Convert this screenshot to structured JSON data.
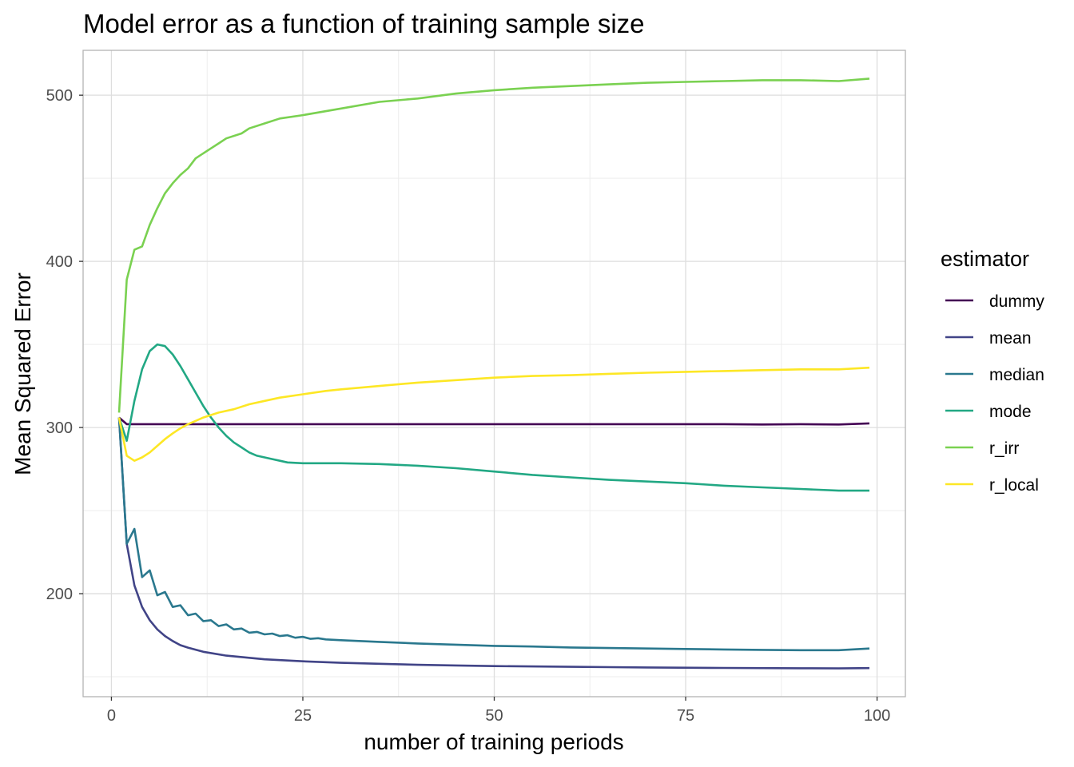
{
  "chart_data": {
    "type": "line",
    "title": "Model error as a function of training sample size",
    "xlabel": "number of training periods",
    "ylabel": "Mean Squared Error",
    "xlim": [
      -3.7,
      103.7
    ],
    "ylim": [
      138,
      527
    ],
    "x_ticks": [
      0,
      25,
      50,
      75,
      100
    ],
    "x_tick_labels": [
      "0",
      "25",
      "50",
      "75",
      "100"
    ],
    "y_ticks": [
      200,
      300,
      400,
      500
    ],
    "y_tick_labels": [
      "200",
      "300",
      "400",
      "500"
    ],
    "x_minor": [
      12.5,
      37.5,
      62.5,
      87.5
    ],
    "y_minor": [
      150,
      250,
      350,
      450
    ],
    "grid": true,
    "legend_title": "estimator",
    "legend_position": "right",
    "series": [
      {
        "name": "dummy",
        "color": "#440154",
        "points": [
          [
            1,
            306
          ],
          [
            2,
            302
          ],
          [
            5,
            302
          ],
          [
            10,
            302
          ],
          [
            20,
            302
          ],
          [
            30,
            302
          ],
          [
            40,
            302
          ],
          [
            50,
            302
          ],
          [
            60,
            302
          ],
          [
            70,
            302
          ],
          [
            80,
            302
          ],
          [
            85,
            301.8
          ],
          [
            90,
            302
          ],
          [
            95,
            301.8
          ],
          [
            99,
            302.5
          ]
        ]
      },
      {
        "name": "mean",
        "color": "#414487",
        "points": [
          [
            1,
            306
          ],
          [
            2,
            230
          ],
          [
            3,
            205
          ],
          [
            4,
            192
          ],
          [
            5,
            184
          ],
          [
            6,
            178.5
          ],
          [
            7,
            174.5
          ],
          [
            8,
            171.5
          ],
          [
            9,
            169
          ],
          [
            10,
            167.5
          ],
          [
            12,
            165
          ],
          [
            15,
            162.7
          ],
          [
            20,
            160.5
          ],
          [
            25,
            159.3
          ],
          [
            30,
            158.4
          ],
          [
            35,
            157.8
          ],
          [
            40,
            157.2
          ],
          [
            45,
            156.8
          ],
          [
            50,
            156.4
          ],
          [
            60,
            156
          ],
          [
            70,
            155.6
          ],
          [
            80,
            155.3
          ],
          [
            90,
            155.1
          ],
          [
            95,
            155
          ],
          [
            99,
            155.2
          ]
        ]
      },
      {
        "name": "median",
        "color": "#2A788E",
        "points": [
          [
            1,
            306
          ],
          [
            2,
            230
          ],
          [
            3,
            239
          ],
          [
            4,
            210
          ],
          [
            5,
            214
          ],
          [
            6,
            199
          ],
          [
            7,
            201
          ],
          [
            8,
            192
          ],
          [
            9,
            193
          ],
          [
            10,
            187
          ],
          [
            11,
            188
          ],
          [
            12,
            183.5
          ],
          [
            13,
            184
          ],
          [
            14,
            180.5
          ],
          [
            15,
            181.5
          ],
          [
            16,
            178.5
          ],
          [
            17,
            179
          ],
          [
            18,
            176.5
          ],
          [
            19,
            177
          ],
          [
            20,
            175.5
          ],
          [
            21,
            176
          ],
          [
            22,
            174.5
          ],
          [
            23,
            175
          ],
          [
            24,
            173.5
          ],
          [
            25,
            174
          ],
          [
            26,
            172.8
          ],
          [
            27,
            173.2
          ],
          [
            28,
            172.5
          ],
          [
            30,
            172
          ],
          [
            35,
            171
          ],
          [
            40,
            170
          ],
          [
            45,
            169.3
          ],
          [
            50,
            168.6
          ],
          [
            55,
            168.2
          ],
          [
            60,
            167.6
          ],
          [
            65,
            167.3
          ],
          [
            70,
            167
          ],
          [
            75,
            166.7
          ],
          [
            80,
            166.4
          ],
          [
            85,
            166.2
          ],
          [
            90,
            166
          ],
          [
            95,
            166
          ],
          [
            99,
            167
          ]
        ]
      },
      {
        "name": "mode",
        "color": "#22A884",
        "points": [
          [
            1,
            306
          ],
          [
            2,
            292
          ],
          [
            3,
            316
          ],
          [
            4,
            335
          ],
          [
            5,
            346
          ],
          [
            6,
            350
          ],
          [
            7,
            349
          ],
          [
            8,
            344
          ],
          [
            9,
            337
          ],
          [
            10,
            329
          ],
          [
            11,
            321
          ],
          [
            12,
            313
          ],
          [
            13,
            306
          ],
          [
            14,
            300
          ],
          [
            15,
            295
          ],
          [
            16,
            291
          ],
          [
            17,
            288
          ],
          [
            18,
            285
          ],
          [
            19,
            283
          ],
          [
            20,
            282
          ],
          [
            21,
            281
          ],
          [
            22,
            280
          ],
          [
            23,
            279
          ],
          [
            25,
            278.5
          ],
          [
            30,
            278.5
          ],
          [
            35,
            278
          ],
          [
            40,
            277
          ],
          [
            45,
            275.5
          ],
          [
            50,
            273.5
          ],
          [
            55,
            271.5
          ],
          [
            60,
            270
          ],
          [
            65,
            268.5
          ],
          [
            70,
            267.5
          ],
          [
            75,
            266.5
          ],
          [
            80,
            265
          ],
          [
            85,
            264
          ],
          [
            90,
            263
          ],
          [
            95,
            262
          ],
          [
            99,
            262
          ]
        ]
      },
      {
        "name": "r_irr",
        "color": "#7AD151",
        "points": [
          [
            1,
            309
          ],
          [
            2,
            389
          ],
          [
            3,
            407
          ],
          [
            4,
            409
          ],
          [
            5,
            422
          ],
          [
            6,
            432
          ],
          [
            7,
            441
          ],
          [
            8,
            447
          ],
          [
            9,
            452
          ],
          [
            10,
            456
          ],
          [
            11,
            462
          ],
          [
            12,
            465
          ],
          [
            13,
            468
          ],
          [
            14,
            471
          ],
          [
            15,
            474
          ],
          [
            17,
            477
          ],
          [
            18,
            480
          ],
          [
            20,
            483
          ],
          [
            22,
            486
          ],
          [
            25,
            488
          ],
          [
            30,
            492
          ],
          [
            35,
            496
          ],
          [
            40,
            498
          ],
          [
            45,
            501
          ],
          [
            50,
            503
          ],
          [
            55,
            504.5
          ],
          [
            60,
            505.5
          ],
          [
            65,
            506.5
          ],
          [
            70,
            507.5
          ],
          [
            75,
            508
          ],
          [
            80,
            508.5
          ],
          [
            85,
            509
          ],
          [
            90,
            509
          ],
          [
            95,
            508.5
          ],
          [
            99,
            510
          ]
        ]
      },
      {
        "name": "r_local",
        "color": "#FDE725",
        "points": [
          [
            1,
            306
          ],
          [
            2,
            283
          ],
          [
            3,
            280
          ],
          [
            4,
            282
          ],
          [
            5,
            285
          ],
          [
            6,
            289
          ],
          [
            7,
            293
          ],
          [
            8,
            296.5
          ],
          [
            9,
            299.5
          ],
          [
            10,
            302
          ],
          [
            11,
            304
          ],
          [
            12,
            306
          ],
          [
            14,
            309
          ],
          [
            16,
            311
          ],
          [
            18,
            314
          ],
          [
            20,
            316
          ],
          [
            22,
            318
          ],
          [
            25,
            320
          ],
          [
            28,
            322
          ],
          [
            30,
            323
          ],
          [
            35,
            325
          ],
          [
            40,
            327
          ],
          [
            45,
            328.5
          ],
          [
            50,
            330
          ],
          [
            55,
            331
          ],
          [
            60,
            331.5
          ],
          [
            65,
            332.3
          ],
          [
            70,
            333
          ],
          [
            75,
            333.5
          ],
          [
            80,
            334
          ],
          [
            85,
            334.5
          ],
          [
            90,
            335
          ],
          [
            95,
            335
          ],
          [
            99,
            336
          ]
        ]
      }
    ]
  }
}
